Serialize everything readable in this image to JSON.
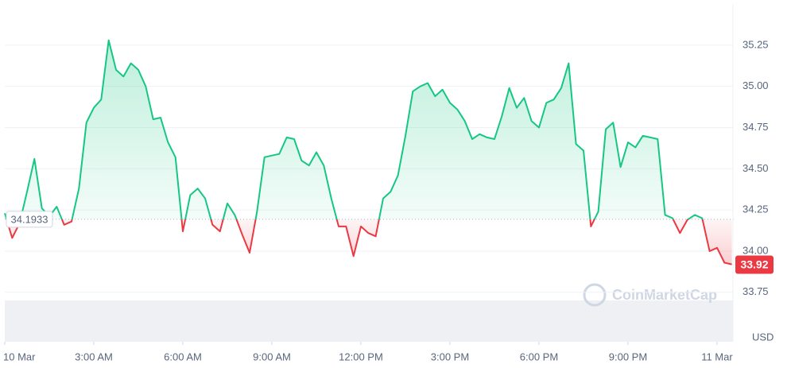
{
  "chart_data": {
    "type": "line",
    "baseline": 34.1933,
    "baseline_label": "34.1933",
    "watermark": "CoinMarketCap",
    "currency": "USD",
    "up_color": "#16c784",
    "down_color": "#ea3943",
    "grid": true,
    "x": [
      0,
      0.25,
      0.5,
      0.75,
      1,
      1.25,
      1.5,
      1.75,
      2,
      2.25,
      2.5,
      2.75,
      3,
      3.25,
      3.5,
      3.75,
      4,
      4.25,
      4.5,
      4.75,
      5,
      5.25,
      5.5,
      5.75,
      6,
      6.25,
      6.5,
      6.75,
      7,
      7.25,
      7.5,
      7.75,
      8,
      8.25,
      8.5,
      8.75,
      9,
      9.25,
      9.5,
      9.75,
      10,
      10.25,
      10.5,
      10.75,
      11,
      11.25,
      11.5,
      11.75,
      12,
      12.25,
      12.5,
      12.75,
      13,
      13.25,
      13.5,
      13.75,
      14,
      14.25,
      14.5,
      14.75,
      15,
      15.25,
      15.5,
      15.75,
      16,
      16.25,
      16.5,
      16.75,
      17,
      17.25,
      17.5,
      17.75,
      18,
      18.25,
      18.5,
      18.75,
      19,
      19.25,
      19.5,
      19.75,
      20,
      20.25,
      20.5,
      20.75,
      21,
      21.25,
      21.5,
      21.75,
      22,
      22.25,
      22.5,
      22.75,
      23,
      23.25,
      23.5,
      23.75,
      24,
      24.25,
      24.5
    ],
    "values": [
      34.23,
      34.08,
      34.17,
      34.36,
      34.56,
      34.26,
      34.21,
      34.27,
      34.16,
      34.18,
      34.38,
      34.78,
      34.87,
      34.92,
      35.28,
      35.1,
      35.06,
      35.14,
      35.1,
      35.0,
      34.8,
      34.81,
      34.66,
      34.57,
      34.12,
      34.34,
      34.38,
      34.32,
      34.16,
      34.12,
      34.29,
      34.22,
      34.1,
      33.99,
      34.24,
      34.57,
      34.58,
      34.59,
      34.69,
      34.68,
      34.55,
      34.52,
      34.6,
      34.52,
      34.32,
      34.15,
      34.15,
      33.97,
      34.15,
      34.11,
      34.09,
      34.32,
      34.36,
      34.46,
      34.7,
      34.97,
      35.0,
      35.02,
      34.94,
      34.98,
      34.9,
      34.86,
      34.79,
      34.68,
      34.71,
      34.69,
      34.68,
      34.82,
      34.99,
      34.87,
      34.93,
      34.79,
      34.75,
      34.9,
      34.92,
      34.99,
      35.14,
      34.65,
      34.61,
      34.15,
      34.24,
      34.74,
      34.78,
      34.51,
      34.66,
      34.63,
      34.7,
      34.69,
      34.68,
      34.22,
      34.2,
      34.11,
      34.19,
      34.22,
      34.2,
      34.0,
      34.02,
      33.93,
      33.92
    ],
    "xlim": [
      0,
      24.55
    ],
    "xticks": [
      {
        "value": 0,
        "label": "10 Mar"
      },
      {
        "value": 3,
        "label": "3:00 AM"
      },
      {
        "value": 6,
        "label": "6:00 AM"
      },
      {
        "value": 9,
        "label": "9:00 AM"
      },
      {
        "value": 12,
        "label": "12:00 PM"
      },
      {
        "value": 15,
        "label": "3:00 PM"
      },
      {
        "value": 18,
        "label": "6:00 PM"
      },
      {
        "value": 21,
        "label": "9:00 PM"
      },
      {
        "value": 24,
        "label": "11 Mar"
      }
    ],
    "ylim": [
      33.45,
      35.5
    ],
    "yticks": [
      {
        "value": 33.75,
        "label": "33.75"
      },
      {
        "value": 34,
        "label": "34.00"
      },
      {
        "value": 34.25,
        "label": "34.25"
      },
      {
        "value": 34.5,
        "label": "34.50"
      },
      {
        "value": 34.75,
        "label": "34.75"
      },
      {
        "value": 35,
        "label": "35.00"
      },
      {
        "value": 35.25,
        "label": "35.25"
      }
    ]
  }
}
